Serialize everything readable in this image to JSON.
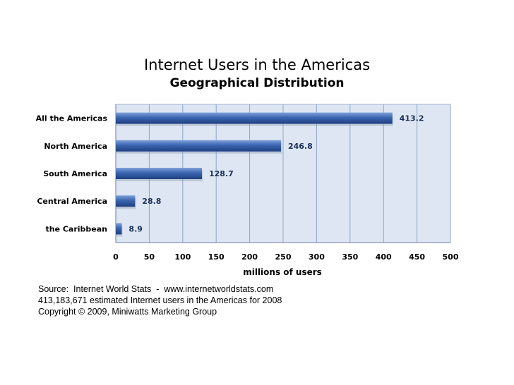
{
  "chart_data": {
    "type": "bar",
    "orientation": "horizontal",
    "title": "Internet Users in the Americas",
    "subtitle": "Geographical Distribution",
    "categories": [
      "All the Americas",
      "North America",
      "South America",
      "Central America",
      "the Caribbean"
    ],
    "values": [
      413.2,
      246.8,
      128.7,
      28.8,
      8.9
    ],
    "value_labels": [
      "413.2",
      "246.8",
      "128.7",
      "28.8",
      "8.9"
    ],
    "xlabel": "millions of users",
    "ylabel": "",
    "xlim": [
      0,
      500
    ],
    "xticks": [
      0,
      50,
      100,
      150,
      200,
      250,
      300,
      350,
      400,
      450,
      500
    ],
    "grid": true,
    "colors": {
      "bar": "#3a65b0",
      "bar_light": "#6f93d3",
      "bar_dark": "#1f3f80",
      "plot_bg": "#dde6f2",
      "grid": "#8ea6cc"
    }
  },
  "footer": {
    "line1": "Source:  Internet World Stats  -  www.internetworldstats.com",
    "line2": "413,183,671 estimated Internet users in the Americas for 2008",
    "line3": "Copyright © 2009, Miniwatts Marketing Group"
  }
}
